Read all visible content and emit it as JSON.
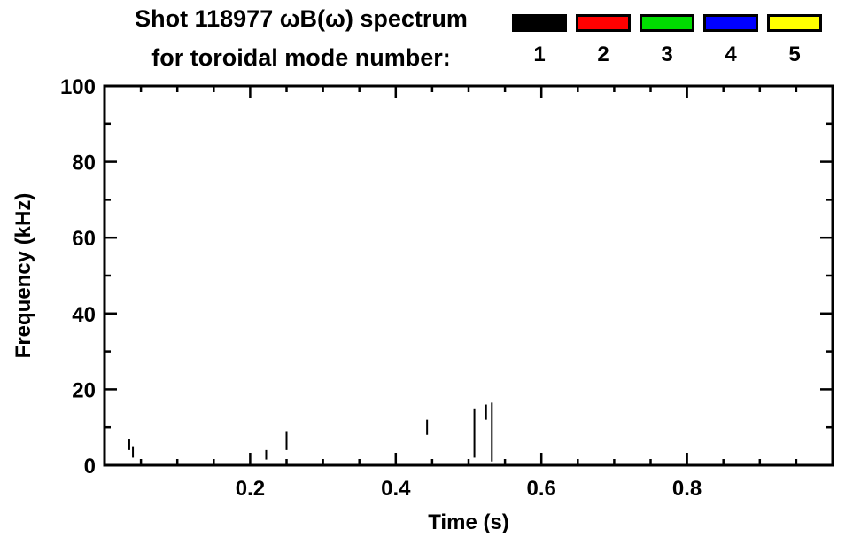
{
  "header": {
    "title_line1": "Shot 118977 ωB(ω) spectrum",
    "title_line2": "for toroidal mode number:",
    "legend": [
      {
        "mode": "1",
        "color": "#000000"
      },
      {
        "mode": "2",
        "color": "#ff0000"
      },
      {
        "mode": "3",
        "color": "#00dd00"
      },
      {
        "mode": "4",
        "color": "#0000ff"
      },
      {
        "mode": "5",
        "color": "#ffff00"
      }
    ]
  },
  "chart_data": {
    "type": "scatter",
    "title": "Shot 118977 ωB(ω) spectrum",
    "subtitle": "for toroidal mode number: 1 2 3 4 5",
    "xlabel": "Time (s)",
    "ylabel": "Frequency (kHz)",
    "xlim": [
      0,
      1
    ],
    "ylim": [
      0,
      100
    ],
    "xticks": [
      0.2,
      0.4,
      0.6,
      0.8
    ],
    "yticks": [
      0,
      20,
      40,
      60,
      80,
      100
    ],
    "x_minor_step": 0.05,
    "y_minor_step": 10,
    "grid": false,
    "legend_entries": [
      "1",
      "2",
      "3",
      "4",
      "5"
    ],
    "legend_position": "top-right",
    "series": [
      {
        "name": "toroidal mode n=1",
        "color": "#000000",
        "segments": [
          {
            "t": 0.034,
            "f0": 4.0,
            "f1": 7.0
          },
          {
            "t": 0.039,
            "f0": 2.0,
            "f1": 5.0
          },
          {
            "t": 0.222,
            "f0": 1.5,
            "f1": 4.0
          },
          {
            "t": 0.25,
            "f0": 4.0,
            "f1": 9.0
          },
          {
            "t": 0.443,
            "f0": 8.0,
            "f1": 12.0
          },
          {
            "t": 0.508,
            "f0": 2.0,
            "f1": 15.0
          },
          {
            "t": 0.524,
            "f0": 12.0,
            "f1": 16.0
          },
          {
            "t": 0.532,
            "f0": 1.0,
            "f1": 16.5
          }
        ]
      }
    ]
  }
}
